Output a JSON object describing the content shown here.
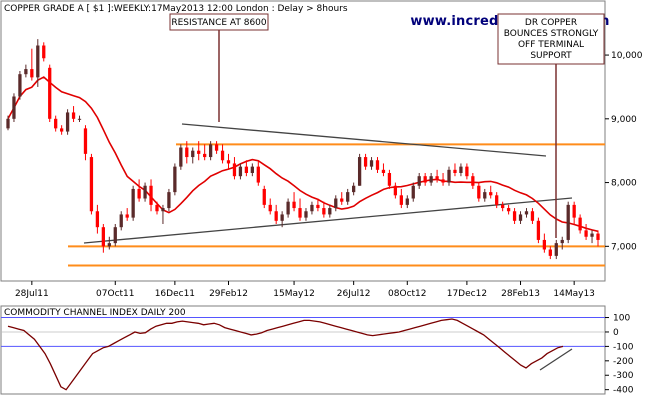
{
  "chart_data": [
    {
      "type": "candlestick",
      "title": "COPPER GRADE A [ $1 ]:WEEKLY:17May2013 12:00 London : Delay > 8hours",
      "watermark": "www.incrediblecharts.com",
      "x_ticks": [
        "28Jul11",
        "07Oct11",
        "16Dec11",
        "29Feb12",
        "15May12",
        "26Jul12",
        "08Oct12",
        "17Dec12",
        "28Feb13",
        "14May13"
      ],
      "y_ticks": [
        "7,000",
        "8,000",
        "9,000",
        "10,000"
      ],
      "ylim": [
        6550,
        10550
      ],
      "annotations": [
        {
          "text": "RESISTANCE AT 8600",
          "week": 32,
          "price": 8650
        },
        {
          "text_lines": [
            "DR COPPER",
            "BOUNCES STRONGLY",
            "OFF TERMINAL",
            "SUPPORT"
          ],
          "week": 94,
          "price": 7000
        }
      ],
      "support_resistance_levels": [
        8600,
        7000,
        6700
      ],
      "moving_average_color": "#e00000",
      "up_color": "#5a2a2a",
      "down_color": "#ff0000",
      "series_weeks": [
        0,
        99
      ],
      "ohlc": [
        [
          8850,
          9050,
          8820,
          9000
        ],
        [
          9000,
          9400,
          8950,
          9350
        ],
        [
          9350,
          9750,
          9300,
          9700
        ],
        [
          9700,
          9850,
          9650,
          9780
        ],
        [
          9780,
          10100,
          9600,
          9650
        ],
        [
          9650,
          10250,
          9500,
          10150
        ],
        [
          10150,
          10200,
          9900,
          9950
        ],
        [
          9800,
          9850,
          8950,
          9000
        ],
        [
          9000,
          9050,
          8800,
          8850
        ],
        [
          8850,
          8900,
          8750,
          8800
        ],
        [
          8800,
          9150,
          8750,
          9100
        ],
        [
          9100,
          9200,
          8950,
          9000
        ],
        [
          9000,
          9050,
          8950,
          9000
        ],
        [
          8850,
          8900,
          8350,
          8450
        ],
        [
          8400,
          8450,
          7500,
          7550
        ],
        [
          7550,
          7650,
          7200,
          7300
        ],
        [
          7300,
          7350,
          6900,
          7000
        ],
        [
          7000,
          7150,
          6950,
          7050
        ],
        [
          7050,
          7350,
          7000,
          7300
        ],
        [
          7300,
          7550,
          7250,
          7500
        ],
        [
          7500,
          7600,
          7400,
          7450
        ],
        [
          7450,
          7950,
          7400,
          7900
        ],
        [
          7900,
          8050,
          7700,
          7750
        ],
        [
          7750,
          8000,
          7700,
          7950
        ],
        [
          7950,
          8050,
          7550,
          7650
        ],
        [
          7650,
          7700,
          7500,
          7550
        ],
        [
          7550,
          7650,
          7350,
          7600
        ],
        [
          7600,
          7900,
          7550,
          7850
        ],
        [
          7850,
          8300,
          7800,
          8250
        ],
        [
          8250,
          8600,
          8200,
          8550
        ],
        [
          8550,
          8650,
          8300,
          8400
        ],
        [
          8400,
          8550,
          8300,
          8500
        ],
        [
          8500,
          8650,
          8350,
          8450
        ],
        [
          8450,
          8600,
          8350,
          8400
        ],
        [
          8400,
          8650,
          8350,
          8600
        ],
        [
          8600,
          8650,
          8450,
          8500
        ],
        [
          8500,
          8600,
          8300,
          8350
        ],
        [
          8350,
          8450,
          8200,
          8300
        ],
        [
          8300,
          8400,
          8050,
          8100
        ],
        [
          8100,
          8300,
          8050,
          8250
        ],
        [
          8250,
          8350,
          8100,
          8150
        ],
        [
          8150,
          8300,
          8100,
          8250
        ],
        [
          8250,
          8350,
          7950,
          8000
        ],
        [
          7900,
          7950,
          7600,
          7650
        ],
        [
          7650,
          7750,
          7500,
          7550
        ],
        [
          7550,
          7650,
          7350,
          7400
        ],
        [
          7400,
          7550,
          7300,
          7500
        ],
        [
          7500,
          7750,
          7450,
          7700
        ],
        [
          7700,
          7850,
          7550,
          7600
        ],
        [
          7600,
          7750,
          7400,
          7450
        ],
        [
          7450,
          7600,
          7400,
          7550
        ],
        [
          7550,
          7700,
          7500,
          7650
        ],
        [
          7650,
          7750,
          7550,
          7600
        ],
        [
          7600,
          7700,
          7450,
          7500
        ],
        [
          7500,
          7650,
          7450,
          7600
        ],
        [
          7600,
          7800,
          7550,
          7750
        ],
        [
          7750,
          7850,
          7650,
          7700
        ],
        [
          7700,
          7900,
          7650,
          7850
        ],
        [
          7850,
          8000,
          7800,
          7950
        ],
        [
          7950,
          8450,
          7950,
          8400
        ],
        [
          8400,
          8450,
          8200,
          8250
        ],
        [
          8250,
          8400,
          8200,
          8350
        ],
        [
          8350,
          8400,
          8150,
          8200
        ],
        [
          8200,
          8300,
          8100,
          8150
        ],
        [
          8150,
          8200,
          7900,
          7950
        ],
        [
          7950,
          8000,
          7750,
          7800
        ],
        [
          7800,
          7900,
          7600,
          7650
        ],
        [
          7650,
          7800,
          7600,
          7750
        ],
        [
          7750,
          8000,
          7700,
          7950
        ],
        [
          7950,
          8150,
          7900,
          8100
        ],
        [
          8100,
          8150,
          7950,
          8000
        ],
        [
          8000,
          8150,
          7950,
          8100
        ],
        [
          8100,
          8200,
          8000,
          8050
        ],
        [
          8050,
          8150,
          7950,
          8000
        ],
        [
          8000,
          8250,
          7950,
          8200
        ],
        [
          8200,
          8300,
          8100,
          8150
        ],
        [
          8150,
          8300,
          8100,
          8250
        ],
        [
          8250,
          8300,
          8050,
          8100
        ],
        [
          8100,
          8150,
          7900,
          7950
        ],
        [
          7950,
          8000,
          7700,
          7750
        ],
        [
          7750,
          7900,
          7700,
          7850
        ],
        [
          7850,
          7950,
          7750,
          7800
        ],
        [
          7800,
          7850,
          7600,
          7650
        ],
        [
          7650,
          7700,
          7550,
          7600
        ],
        [
          7600,
          7650,
          7500,
          7550
        ],
        [
          7550,
          7600,
          7350,
          7400
        ],
        [
          7400,
          7550,
          7350,
          7500
        ],
        [
          7500,
          7600,
          7450,
          7550
        ],
        [
          7550,
          7600,
          7350,
          7400
        ],
        [
          7400,
          7450,
          7050,
          7100
        ],
        [
          7100,
          7200,
          6900,
          6950
        ],
        [
          6950,
          7000,
          6800,
          6850
        ],
        [
          6850,
          7100,
          6800,
          7050
        ],
        [
          7050,
          7150,
          6950,
          7100
        ],
        [
          7100,
          7700,
          7050,
          7650
        ],
        [
          7650,
          7700,
          7350,
          7450
        ],
        [
          7450,
          7500,
          7200,
          7250
        ],
        [
          7250,
          7350,
          7100,
          7150
        ],
        [
          7150,
          7250,
          7050,
          7200
        ],
        [
          7200,
          7250,
          7000,
          7100
        ]
      ]
    },
    {
      "type": "line",
      "title": "COMMODITY CHANNEL INDEX DAILY 200",
      "y_ticks": [
        "100",
        "0",
        "-100",
        "-200",
        "-300",
        "-400"
      ],
      "ylim": [
        -430,
        180
      ],
      "line_color": "#7a0000",
      "reference_line_color": "#5555ff",
      "values": [
        40,
        30,
        20,
        10,
        -20,
        -50,
        -100,
        -150,
        -220,
        -300,
        -380,
        -400,
        -350,
        -300,
        -250,
        -200,
        -150,
        -130,
        -110,
        -100,
        -80,
        -60,
        -40,
        -20,
        0,
        -10,
        -5,
        20,
        40,
        50,
        60,
        60,
        70,
        75,
        70,
        65,
        60,
        50,
        55,
        60,
        50,
        30,
        20,
        10,
        0,
        -10,
        -20,
        -15,
        -5,
        10,
        20,
        30,
        40,
        50,
        60,
        70,
        80,
        80,
        75,
        70,
        60,
        50,
        40,
        30,
        20,
        10,
        0,
        -10,
        -20,
        -25,
        -20,
        -15,
        -10,
        -5,
        0,
        10,
        20,
        30,
        40,
        50,
        60,
        70,
        80,
        85,
        90,
        80,
        60,
        40,
        20,
        0,
        -20,
        -50,
        -80,
        -110,
        -140,
        -170,
        -200,
        -230,
        -250,
        -220,
        -200,
        -180,
        -150,
        -130,
        -110,
        -100
      ]
    }
  ]
}
